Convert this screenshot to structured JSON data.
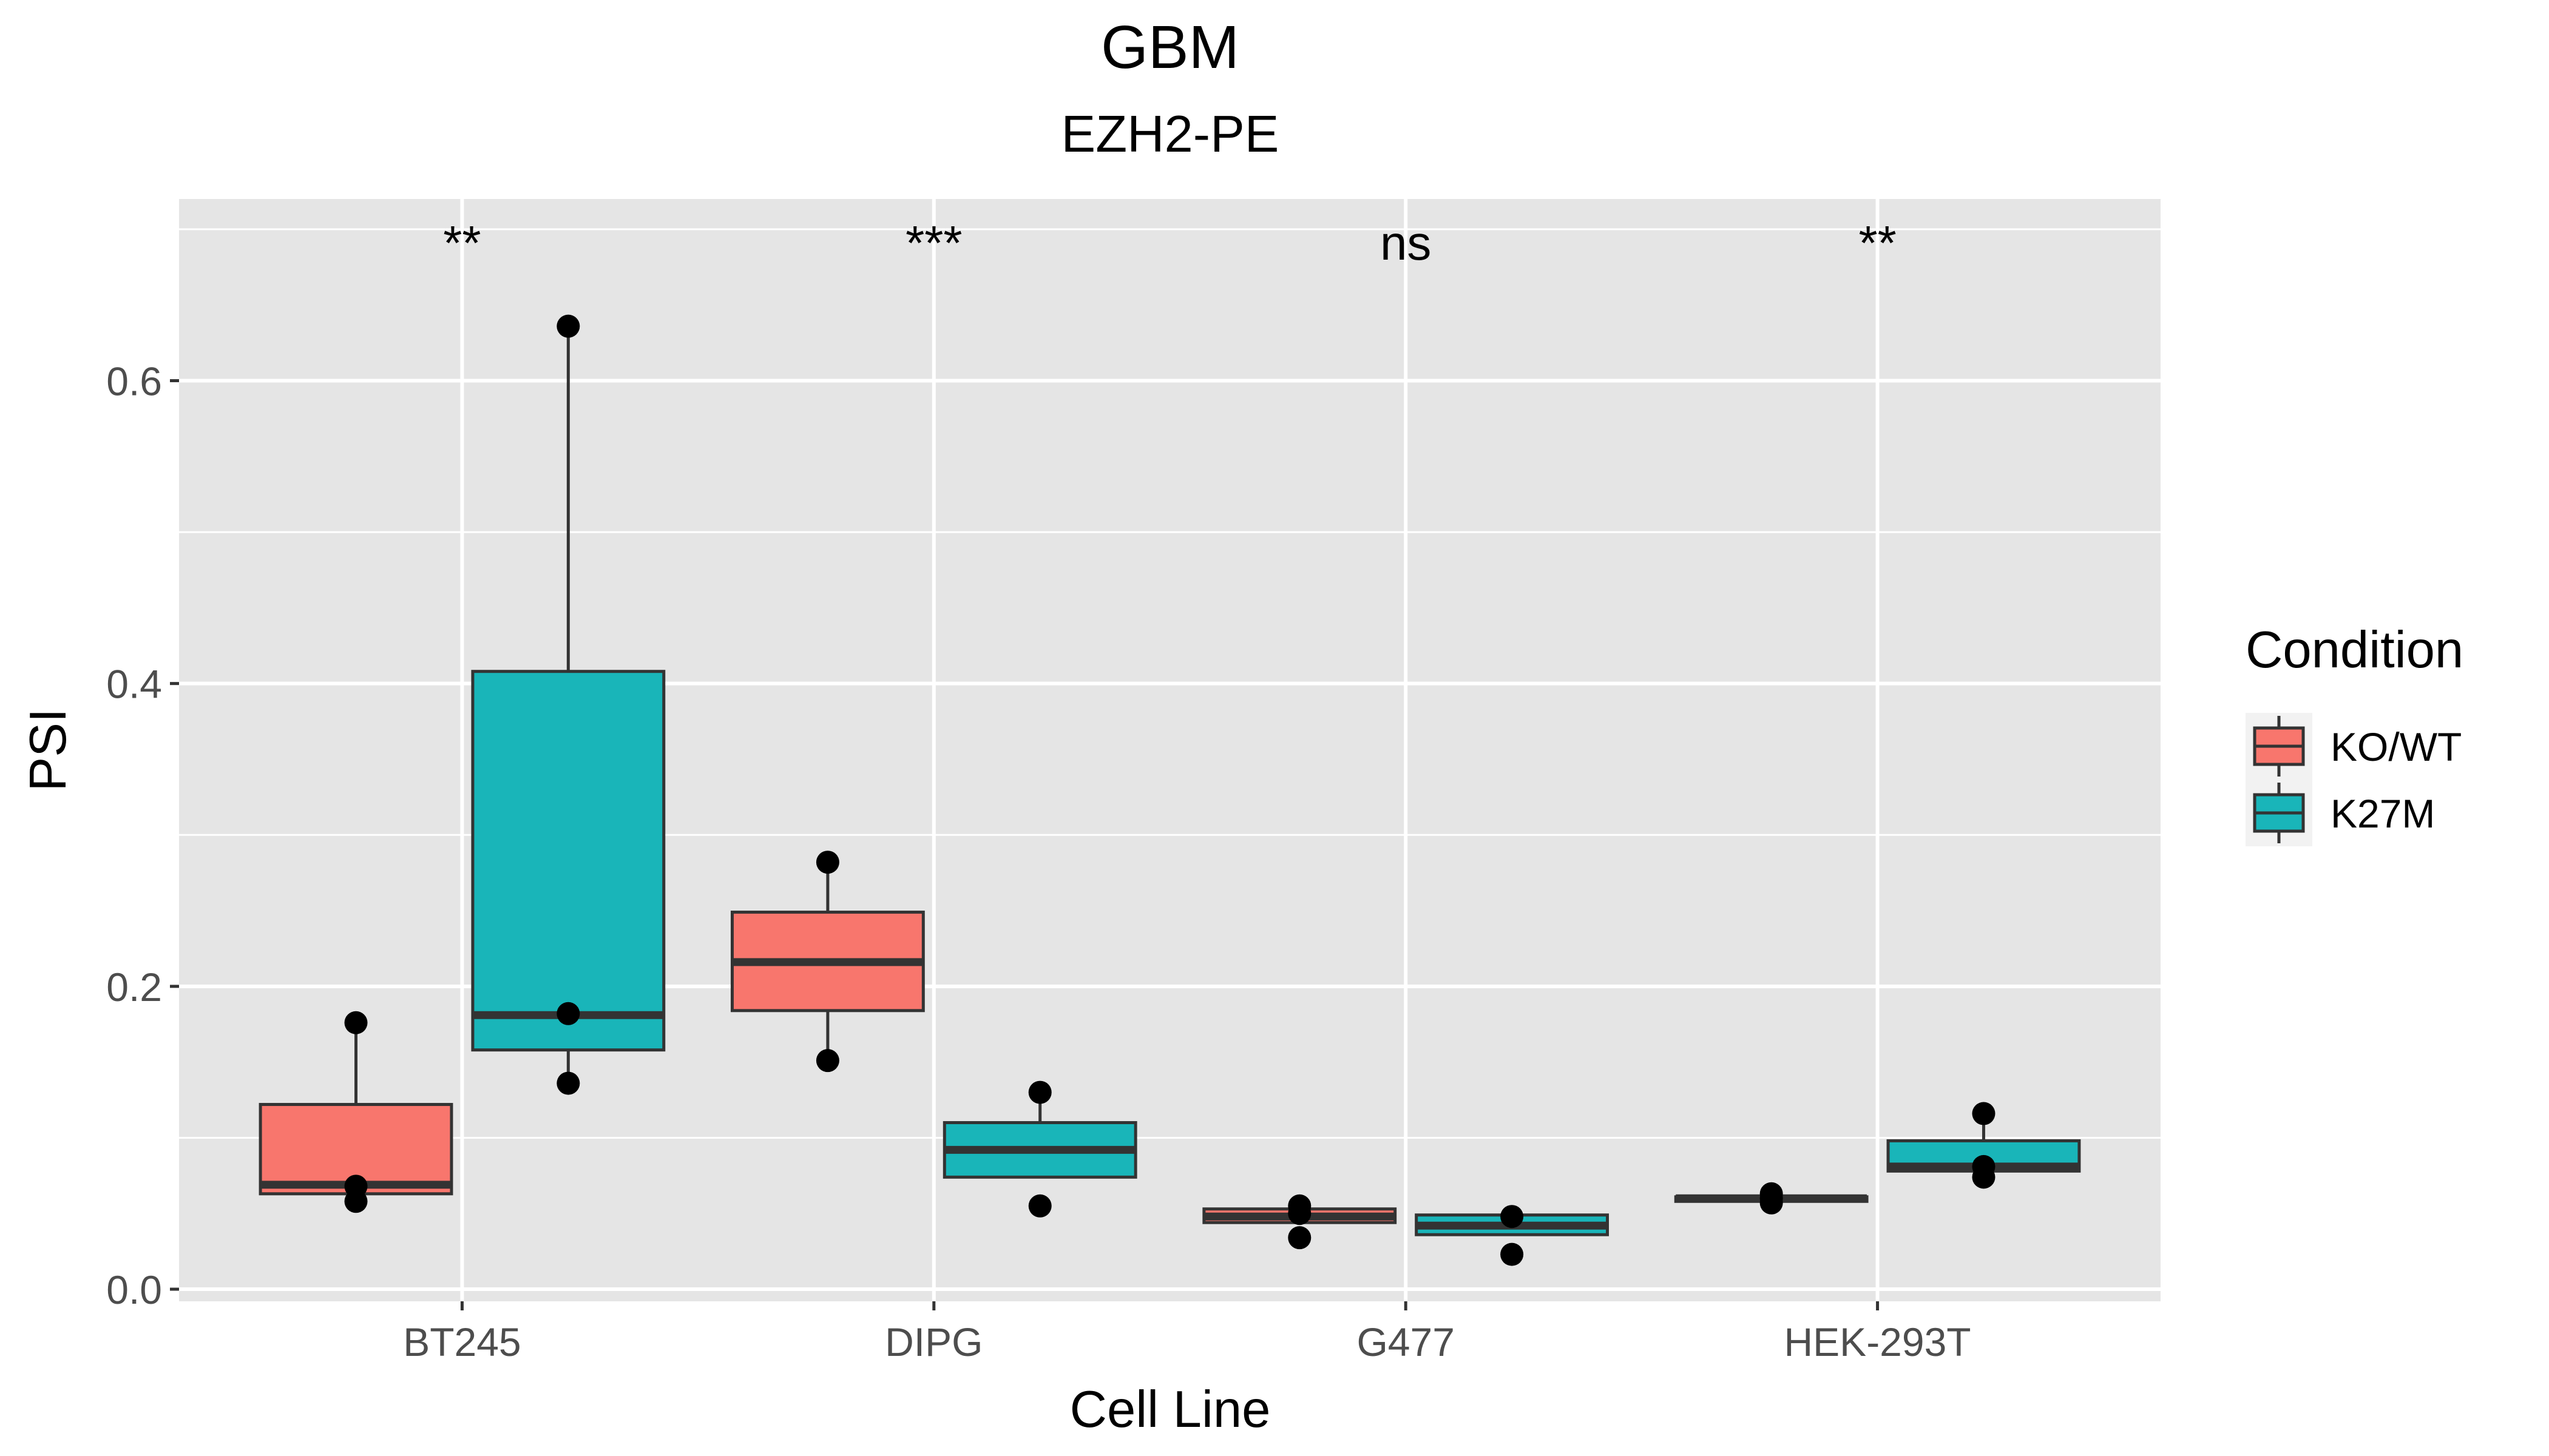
{
  "chart_data": {
    "type": "boxplot",
    "title": "GBM",
    "subtitle": "EZH2-PE",
    "xlabel": "Cell Line",
    "ylabel": "PSI",
    "ylim": [
      -0.008,
      0.72
    ],
    "yticks": [
      0.0,
      0.2,
      0.4,
      0.6
    ],
    "ytick_labels": [
      "0.0",
      "0.2",
      "0.4",
      "0.6"
    ],
    "grid": true,
    "legend": {
      "title": "Condition",
      "position": "right",
      "entries": [
        "KO/WT",
        "K27M"
      ]
    },
    "colors": {
      "KO/WT": "#F8766D",
      "K27M": "#19B5B9"
    },
    "categories": [
      "BT245",
      "DIPG",
      "G477",
      "HEK-293T"
    ],
    "significance": [
      "**",
      "***",
      "ns",
      "**"
    ],
    "series": [
      {
        "name": "KO/WT",
        "boxes": [
          {
            "whisker_low": 0.062,
            "q1": 0.063,
            "median": 0.069,
            "q3": 0.122,
            "whisker_high": 0.176,
            "points": [
              0.058,
              0.068,
              0.176
            ]
          },
          {
            "whisker_low": 0.151,
            "q1": 0.184,
            "median": 0.216,
            "q3": 0.249,
            "whisker_high": 0.282,
            "points": [
              0.151,
              0.282
            ]
          },
          {
            "whisker_low": 0.044,
            "q1": 0.044,
            "median": 0.048,
            "q3": 0.053,
            "whisker_high": 0.053,
            "points": [
              0.034,
              0.05,
              0.055
            ]
          },
          {
            "whisker_low": 0.058,
            "q1": 0.058,
            "median": 0.06,
            "q3": 0.061,
            "whisker_high": 0.061,
            "points": [
              0.057,
              0.06,
              0.063
            ]
          }
        ]
      },
      {
        "name": "K27M",
        "boxes": [
          {
            "whisker_low": 0.135,
            "q1": 0.158,
            "median": 0.181,
            "q3": 0.408,
            "whisker_high": 0.635,
            "points": [
              0.136,
              0.182,
              0.636
            ]
          },
          {
            "whisker_low": 0.074,
            "q1": 0.074,
            "median": 0.092,
            "q3": 0.11,
            "whisker_high": 0.13,
            "points": [
              0.055,
              0.13
            ]
          },
          {
            "whisker_low": 0.036,
            "q1": 0.036,
            "median": 0.042,
            "q3": 0.049,
            "whisker_high": 0.049,
            "points": [
              0.023,
              0.048
            ]
          },
          {
            "whisker_low": 0.078,
            "q1": 0.078,
            "median": 0.081,
            "q3": 0.098,
            "whisker_high": 0.116,
            "points": [
              0.074,
              0.081,
              0.116
            ]
          }
        ]
      }
    ]
  }
}
